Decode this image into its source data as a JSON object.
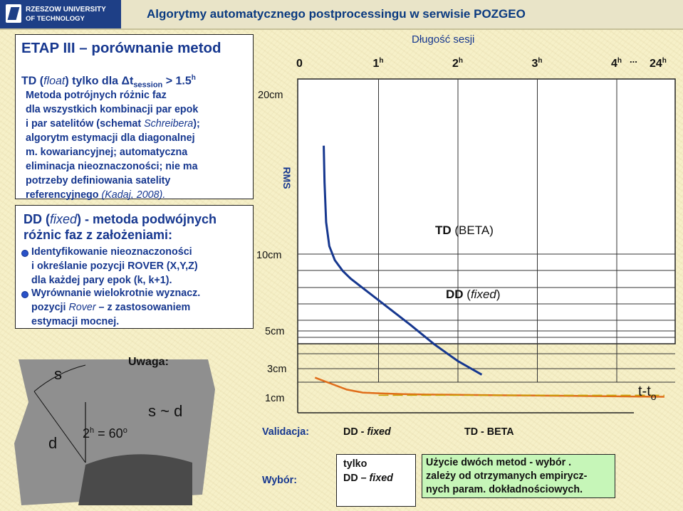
{
  "header": {
    "logo_line1": "RZESZOW UNIVERSITY",
    "logo_line2": "OF TECHNOLOGY",
    "title": "Algorytmy automatycznego postprocessingu w serwisie POZGEO"
  },
  "left": {
    "etap": "ETAP III – porównanie metod",
    "td_heading_prefix": "TD (",
    "td_heading_float": "float",
    "td_heading_mid": ")  tylko dla  Δt",
    "td_heading_sub": "session",
    "td_heading_suffix": " > 1.5",
    "td_heading_sup": "h",
    "td_lines": [
      "Metoda potrójnych różnic faz",
      "dla wszystkich kombinacji par epok",
      "i par satelitów  (schemat ",
      "algorytm estymacji dla diagonalnej",
      "m. kowariancyjnej;  automatyczna",
      "eliminacja nieoznaczoności;  nie ma",
      "potrzeby definiowania satelity",
      "referencyjnego "
    ],
    "td_schreibera": "Schreibera",
    "td_schreibera_tail": ");",
    "td_kadaj": "(Kadaj, 2008).",
    "dd_heading_1_prefix": "DD (",
    "dd_heading_1_fixed": "fixed",
    "dd_heading_1_suffix": ") - metoda podwójnych",
    "dd_heading_2": "różnic faz z założeniami:",
    "dd_bullets": [
      "Identyfikowanie nieoznaczoności",
      "Wyrównanie wielokrotnie wyznacz."
    ],
    "dd_lines": [
      "i określanie pozycji ROVER (X,Y,Z)",
      "dla każdej pary epok (k, k+1).",
      "pozycji ",
      "estymacji mocnej."
    ],
    "dd_rover": "Rover",
    "dd_rover_tail": " – z zastosowaniem"
  },
  "swatch": {
    "s": "s",
    "d": "d",
    "angle_prefix": "2",
    "angle_sup": "h",
    "angle_mid": " = 60",
    "angle_sup2": "o",
    "uwaga": "Uwaga:",
    "relation": "s ~ d"
  },
  "chart_data": {
    "type": "line",
    "title": "Długość sesji",
    "x_ticks": [
      "0",
      "1",
      "2",
      "3",
      "4",
      "24"
    ],
    "x_tick_sup": "h",
    "x_ellipsis": "...",
    "x_tick_values": [
      0,
      1,
      2,
      3,
      4
    ],
    "ylabel": "RMS",
    "y_tick_labels": [
      "20cm",
      "10cm",
      "5cm",
      "3cm",
      "1cm"
    ],
    "xlabel_main": "t-t",
    "xlabel_sub": "o",
    "grid": true,
    "series": [
      {
        "name": "TD (BETA)",
        "color": "#16378f",
        "x": [
          0.31,
          0.32,
          0.34,
          0.38,
          0.45,
          0.55,
          0.65,
          0.8,
          1.0,
          1.2,
          1.4,
          1.7,
          2.0,
          2.3
        ],
        "y_rms_cm": [
          16.8,
          14.5,
          12.0,
          10.5,
          9.6,
          8.9,
          8.4,
          7.8,
          7.0,
          6.2,
          5.4,
          4.3,
          3.4,
          2.6
        ]
      },
      {
        "name": "DD (fixed)",
        "color": "#e06d1a",
        "x": [
          0.2,
          0.3,
          0.4,
          0.5,
          0.6,
          0.7,
          0.8,
          1.0,
          1.3,
          1.6,
          2.0,
          2.5,
          3.0,
          3.5,
          4.0,
          4.6
        ],
        "y_rms_cm": [
          2.4,
          2.2,
          2.0,
          1.8,
          1.6,
          1.5,
          1.4,
          1.35,
          1.3,
          1.27,
          1.25,
          1.22,
          1.2,
          1.18,
          1.15,
          1.12
        ]
      }
    ],
    "annotations": {
      "td_prefix": "TD",
      "td_suffix": " (BETA)",
      "dd_prefix": "DD",
      "dd_open": " (",
      "dd_fixed": "fixed",
      "dd_close": ")"
    }
  },
  "bottom": {
    "validacja_label": "Validacja:",
    "validacja_dd": "DD - ",
    "validacja_dd_fixed": "fixed",
    "validacja_td": "TD - BETA",
    "wybor_label": "Wybór:",
    "tylko": "tylko",
    "tylko_dd": "DD – ",
    "tylko_fixed": "fixed",
    "uzycie_lines": [
      "Użycie dwóch metod - wybór   .",
      "zależy od otrzymanych empirycz-",
      "nych param. dokładnościowych."
    ]
  },
  "colors": {
    "accent_blue": "#16378f",
    "dd_orange": "#e06d1a",
    "background": "#f6f0c8",
    "green_cell": "#c6f6b8",
    "swatch_gray": "#8f8f8f",
    "swatch_dark": "#4a4a4a"
  }
}
